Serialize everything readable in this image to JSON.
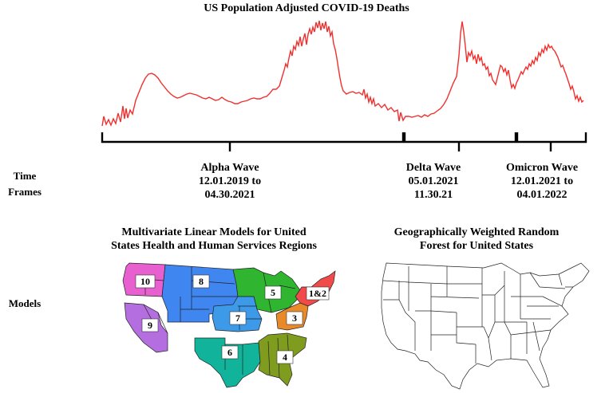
{
  "title": "US Population Adjusted COVID-19 Deaths",
  "rows": {
    "time": "Time\nFrames",
    "models": "Models"
  },
  "waves": [
    {
      "name": "Alpha Wave",
      "start": "12.01.2019 to",
      "end": "04.30.2021"
    },
    {
      "name": "Delta Wave",
      "start": "05.01.2021",
      "end": "11.30.21"
    },
    {
      "name": "Omicron Wave",
      "start": "12.01.2021 to",
      "end": "04.01.2022"
    }
  ],
  "models": {
    "mlm_title_1": "Multivariate Linear Models for United",
    "mlm_title_2": "States Health and Human Services Regions",
    "gwrf_title_1": "Geographically Weighted Random",
    "gwrf_title_2": "Forest for United States"
  },
  "regions": [
    {
      "label": "10",
      "color": "#e85fd0"
    },
    {
      "label": "8",
      "color": "#3f86f0"
    },
    {
      "label": "5",
      "color": "#2fb52f"
    },
    {
      "label": "1&2",
      "color": "#f04a4a"
    },
    {
      "label": "7",
      "color": "#3d9ae8"
    },
    {
      "label": "3",
      "color": "#e88a2a"
    },
    {
      "label": "9",
      "color": "#b46ee0"
    },
    {
      "label": "6",
      "color": "#12b39b"
    },
    {
      "label": "4",
      "color": "#7f9c1e"
    }
  ],
  "line_color": "#f0302e"
}
